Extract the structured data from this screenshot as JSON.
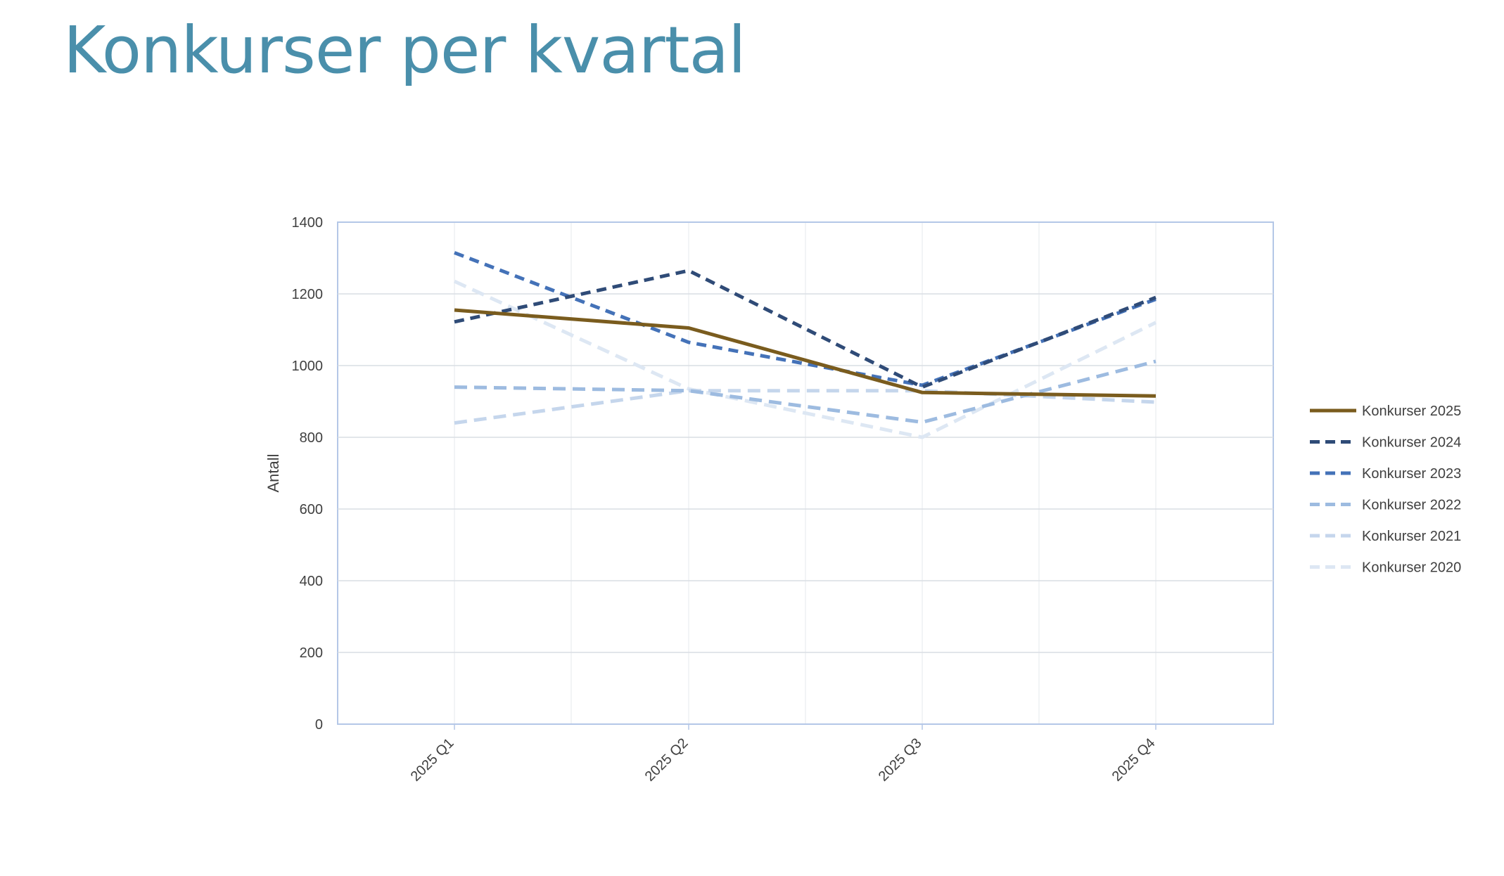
{
  "slide": {
    "title": "Konkurser per kvartal"
  },
  "colors": {
    "title": "#4a8fab",
    "gridline": "#d9dde3",
    "plot_border": "#b4c7e7",
    "vertical_gridline": "#eef0f3",
    "tick_text": "#404040"
  },
  "chart_data": {
    "type": "line",
    "title": "",
    "xlabel": "",
    "ylabel": "Antall",
    "ylim": [
      0,
      1400
    ],
    "yticks": [
      0,
      200,
      400,
      600,
      800,
      1000,
      1200,
      1400
    ],
    "categories": [
      "2025 Q1",
      "2025 Q2",
      "2025 Q3",
      "2025 Q4"
    ],
    "grid": true,
    "legend_position": "right",
    "series": [
      {
        "name": "Konkurser 2025",
        "values": [
          1155,
          1105,
          925,
          915
        ],
        "color": "#7a5c1e",
        "dash": "solid"
      },
      {
        "name": "Konkurser 2024",
        "values": [
          1122,
          1265,
          940,
          1190
        ],
        "color": "#2f4b77",
        "dash": "dashed"
      },
      {
        "name": "Konkurser 2023",
        "values": [
          1315,
          1065,
          945,
          1185
        ],
        "color": "#4472b8",
        "dash": "dashed"
      },
      {
        "name": "Konkurser 2022",
        "values": [
          940,
          930,
          842,
          1012
        ],
        "color": "#9dbbe0",
        "dash": "dashed"
      },
      {
        "name": "Konkurser 2021",
        "values": [
          840,
          930,
          930,
          898
        ],
        "color": "#c5d6ec",
        "dash": "dashed"
      },
      {
        "name": "Konkurser 2020",
        "values": [
          1235,
          935,
          800,
          1120
        ],
        "color": "#dde7f3",
        "dash": "dashed"
      }
    ]
  }
}
